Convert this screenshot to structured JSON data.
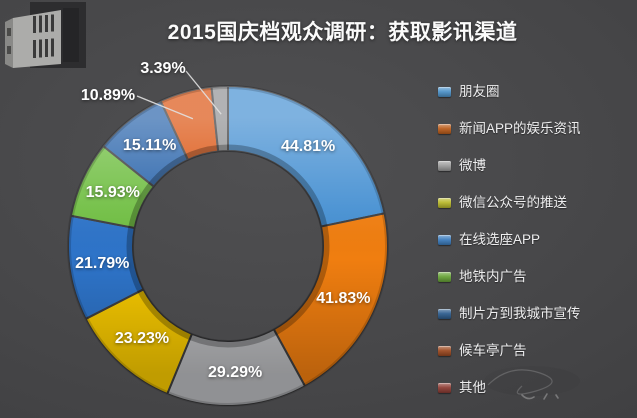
{
  "title": "2015国庆档观众调研：获取影讯渠道",
  "chart_data": {
    "type": "pie",
    "subtype": "donut",
    "title": "2015国庆档观众调研：获取影讯渠道",
    "unit": "%",
    "direction": "clockwise",
    "start_angle_deg": 0,
    "legend_position": "right",
    "series": [
      {
        "label": "朋友圈",
        "value": 44.81,
        "display": "44.81%",
        "slice_color": "#4690d2",
        "legend_color": "#4e93c9",
        "label_placement": "inside"
      },
      {
        "label": "新闻APP的娱乐资讯",
        "value": 41.83,
        "display": "41.83%",
        "slice_color": "#f07e10",
        "legend_color": "#bc5e1c",
        "label_placement": "inside"
      },
      {
        "label": "微博",
        "value": 29.29,
        "display": "29.29%",
        "slice_color": "#b9babd",
        "legend_color": "#9d9d9d",
        "label_placement": "inside"
      },
      {
        "label": "微信公众号的推送",
        "value": 23.23,
        "display": "23.23%",
        "slice_color": "#f6c800",
        "legend_color": "#b8b82b",
        "label_placement": "inside"
      },
      {
        "label": "在线选座APP",
        "value": 21.79,
        "display": "21.79%",
        "slice_color": "#2e74c9",
        "legend_color": "#3d7dbe",
        "label_placement": "inside"
      },
      {
        "label": "地铁内广告",
        "value": 15.93,
        "display": "15.93%",
        "slice_color": "#71bf44",
        "legend_color": "#68a438",
        "label_placement": "inside"
      },
      {
        "label": "制片方到我城市宣传",
        "value": 15.11,
        "display": "15.11%",
        "slice_color": "#2c66ac",
        "legend_color": "#2f5e8f",
        "label_placement": "inside"
      },
      {
        "label": "候车亭广告",
        "value": 10.89,
        "display": "10.89%",
        "slice_color": "#dc5512",
        "legend_color": "#9d4a21",
        "label_placement": "callout"
      },
      {
        "label": "其他",
        "value": 3.39,
        "display": "3.39%",
        "slice_color": "#909193",
        "legend_color": "#8e3d35",
        "label_placement": "callout"
      }
    ]
  }
}
